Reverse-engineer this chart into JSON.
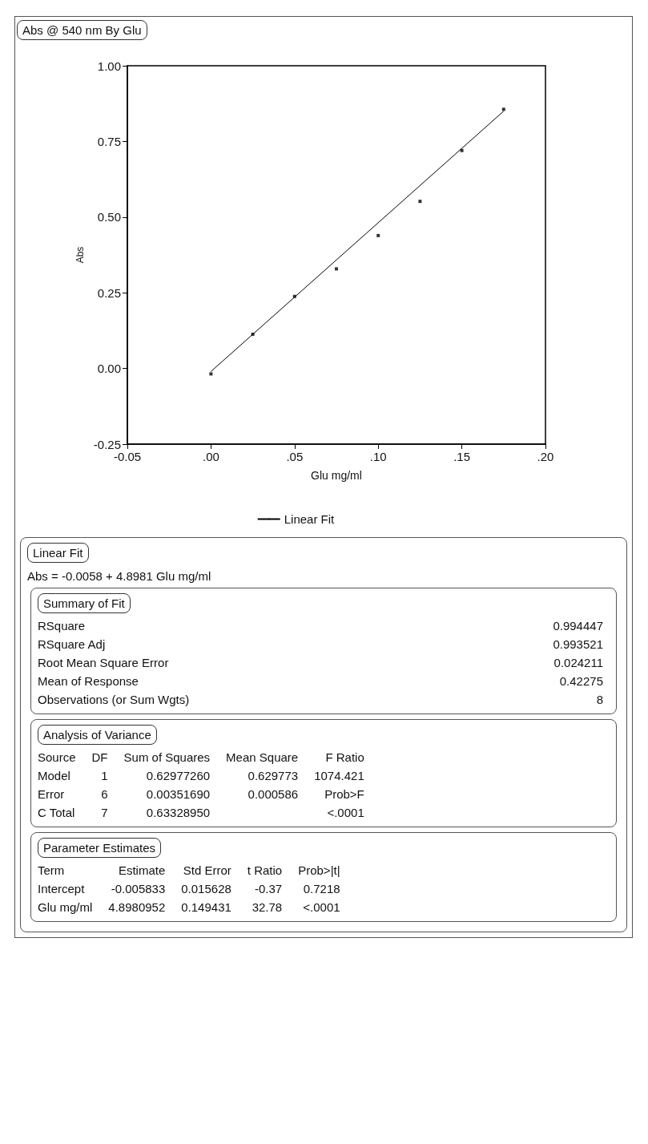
{
  "chart_data": [
    {
      "type": "scatter",
      "title": "Abs @ 540 nm By Glu",
      "xlabel": "Glu mg/ml",
      "ylabel": "Abs",
      "xlim": [
        -0.05,
        0.2
      ],
      "xticks": [
        -0.05,
        {
          "value": 0,
          "label": ".00"
        },
        {
          "value": 0.05,
          "label": ".05"
        },
        {
          "value": 0.1,
          "label": ".10"
        },
        {
          "value": 0.15,
          "label": ".15"
        },
        {
          "value": 0.2,
          "label": ".20"
        }
      ],
      "ylim": [
        -0.25,
        1
      ],
      "yticks": [
        {
          "value": -0.25,
          "label": "-0.25"
        },
        {
          "value": 0,
          "label": "0.00"
        },
        {
          "value": 0.25,
          "label": "0.25"
        },
        {
          "value": 0.5,
          "label": "0.50"
        },
        {
          "value": 0.75,
          "label": "0.75"
        },
        {
          "value": 1,
          "label": "1.00"
        }
      ],
      "legend": "bottom",
      "series": [
        {
          "type": "scatter",
          "marker": "square",
          "color": "#000000",
          "x": [
            0,
            0.025,
            0.05,
            0.075,
            0.1,
            0.125,
            0.15,
            0.175
          ],
          "values": [
            -0.018,
            0.113,
            0.238,
            0.329,
            0.439,
            0.552,
            0.72,
            0.856
          ]
        },
        {
          "type": "line",
          "marker": "none",
          "name": "Linear Fit",
          "color": "#000000",
          "x": [
            0,
            0.175
          ],
          "values": [
            -0.01,
            0.85
          ]
        }
      ]
    },
    {
      "type": "other",
      "title": "Linear Fit",
      "subtitle": "Abs = -0.0058 + 4.8981 Glu mg/ml"
    },
    {
      "type": "other",
      "title": "Summary of Fit",
      "annotations": [
        "RSquare\t0.994447",
        "RSquare Adj\t0.993521",
        "Root Mean Square Error\t0.024211",
        "Mean of Response\t0.42275",
        "Observations (or Sum Wgts)\t8"
      ]
    },
    {
      "type": "other",
      "title": "Analysis of Variance",
      "annotations": [
        "Source\tDF\tSum of Squares\tMean Square\tF Ratio",
        "Model\t1\t0.62977260\t0.629773\t1074.421",
        "Error\t6\t0.00351690\t0.000586\tProb>F",
        "C Total\t7\t0.63328950\t\t<.0001"
      ]
    },
    {
      "type": "other",
      "title": "Parameter Estimates",
      "annotations": [
        "Term\tEstimate\tStd Error\tt Ratio\tProb>|t|",
        "Intercept\t-0.005833\t0.015628\t-0.37\t0.7218",
        "Glu mg/ml\t4.8980952\t0.149431\t32.78\t<.0001"
      ]
    }
  ]
}
